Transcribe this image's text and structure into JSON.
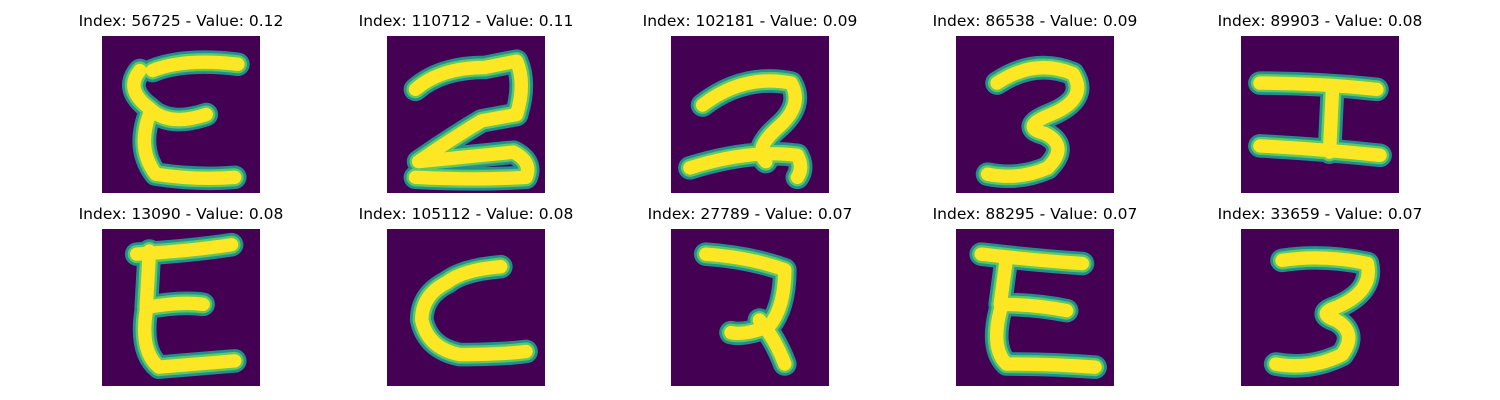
{
  "colors": {
    "background": "#440154",
    "mid_low": "#21908d",
    "mid_high": "#5ec962",
    "stroke": "#fde725"
  },
  "panels": [
    {
      "title": "Index: 56725 - Value: 0.12",
      "index": 56725,
      "value": 0.12,
      "glyph": "E-shape"
    },
    {
      "title": "Index: 110712 - Value: 0.11",
      "index": 110712,
      "value": 0.11,
      "glyph": "2-shape"
    },
    {
      "title": "Index: 102181 - Value: 0.09",
      "index": 102181,
      "value": 0.09,
      "glyph": "2-shape"
    },
    {
      "title": "Index: 86538 - Value: 0.09",
      "index": 86538,
      "value": 0.09,
      "glyph": "3-shape"
    },
    {
      "title": "Index: 89903 - Value: 0.08",
      "index": 89903,
      "value": 0.08,
      "glyph": "H-shape"
    },
    {
      "title": "Index: 13090 - Value: 0.08",
      "index": 13090,
      "value": 0.08,
      "glyph": "E-shape"
    },
    {
      "title": "Index: 105112 - Value: 0.08",
      "index": 105112,
      "value": 0.08,
      "glyph": "C-shape"
    },
    {
      "title": "Index: 27789 - Value: 0.07",
      "index": 27789,
      "value": 0.07,
      "glyph": "7-shape"
    },
    {
      "title": "Index: 88295 - Value: 0.07",
      "index": 88295,
      "value": 0.07,
      "glyph": "E-shape"
    },
    {
      "title": "Index: 33659 - Value: 0.07",
      "index": 33659,
      "value": 0.07,
      "glyph": "3-shape"
    }
  ]
}
